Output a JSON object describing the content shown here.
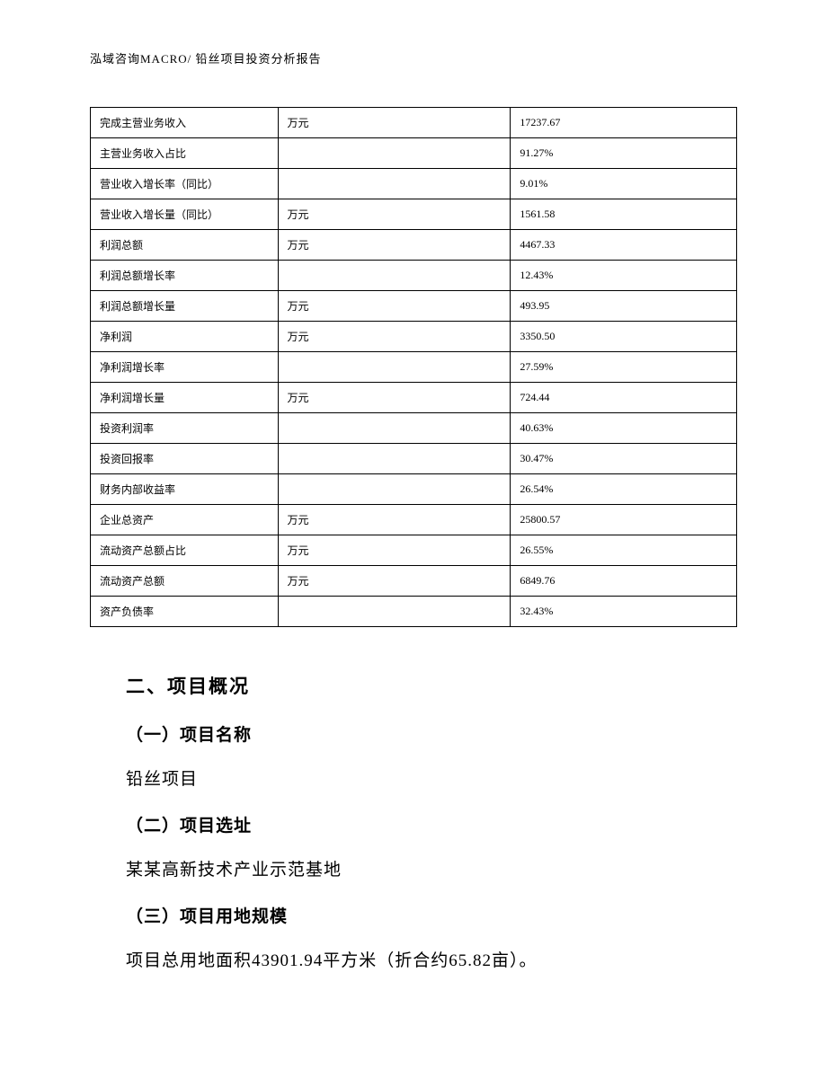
{
  "header": "泓域咨询MACRO/    铅丝项目投资分析报告",
  "table": {
    "rows": [
      {
        "label": "完成主营业务收入",
        "unit": "万元",
        "value": "17237.67"
      },
      {
        "label": "主营业务收入占比",
        "unit": "",
        "value": "91.27%"
      },
      {
        "label": "营业收入增长率（同比）",
        "unit": "",
        "value": "9.01%"
      },
      {
        "label": "营业收入增长量（同比）",
        "unit": "万元",
        "value": "1561.58"
      },
      {
        "label": "利润总额",
        "unit": "万元",
        "value": "4467.33"
      },
      {
        "label": "利润总额增长率",
        "unit": "",
        "value": "12.43%"
      },
      {
        "label": "利润总额增长量",
        "unit": "万元",
        "value": "493.95"
      },
      {
        "label": "净利润",
        "unit": "万元",
        "value": "3350.50"
      },
      {
        "label": "净利润增长率",
        "unit": "",
        "value": "27.59%"
      },
      {
        "label": "净利润增长量",
        "unit": "万元",
        "value": "724.44"
      },
      {
        "label": "投资利润率",
        "unit": "",
        "value": "40.63%"
      },
      {
        "label": "投资回报率",
        "unit": "",
        "value": "30.47%"
      },
      {
        "label": "财务内部收益率",
        "unit": "",
        "value": "26.54%"
      },
      {
        "label": "企业总资产",
        "unit": "万元",
        "value": "25800.57"
      },
      {
        "label": "流动资产总额占比",
        "unit": "万元",
        "value": "26.55%"
      },
      {
        "label": "流动资产总额",
        "unit": "万元",
        "value": "6849.76"
      },
      {
        "label": "资产负债率",
        "unit": "",
        "value": "32.43%"
      }
    ]
  },
  "sections": {
    "mainHeading": "二、项目概况",
    "sub1": {
      "heading": "（一）项目名称",
      "text": "铅丝项目"
    },
    "sub2": {
      "heading": "（二）项目选址",
      "text": "某某高新技术产业示范基地"
    },
    "sub3": {
      "heading": "（三）项目用地规模",
      "text": "项目总用地面积43901.94平方米（折合约65.82亩）。"
    }
  }
}
